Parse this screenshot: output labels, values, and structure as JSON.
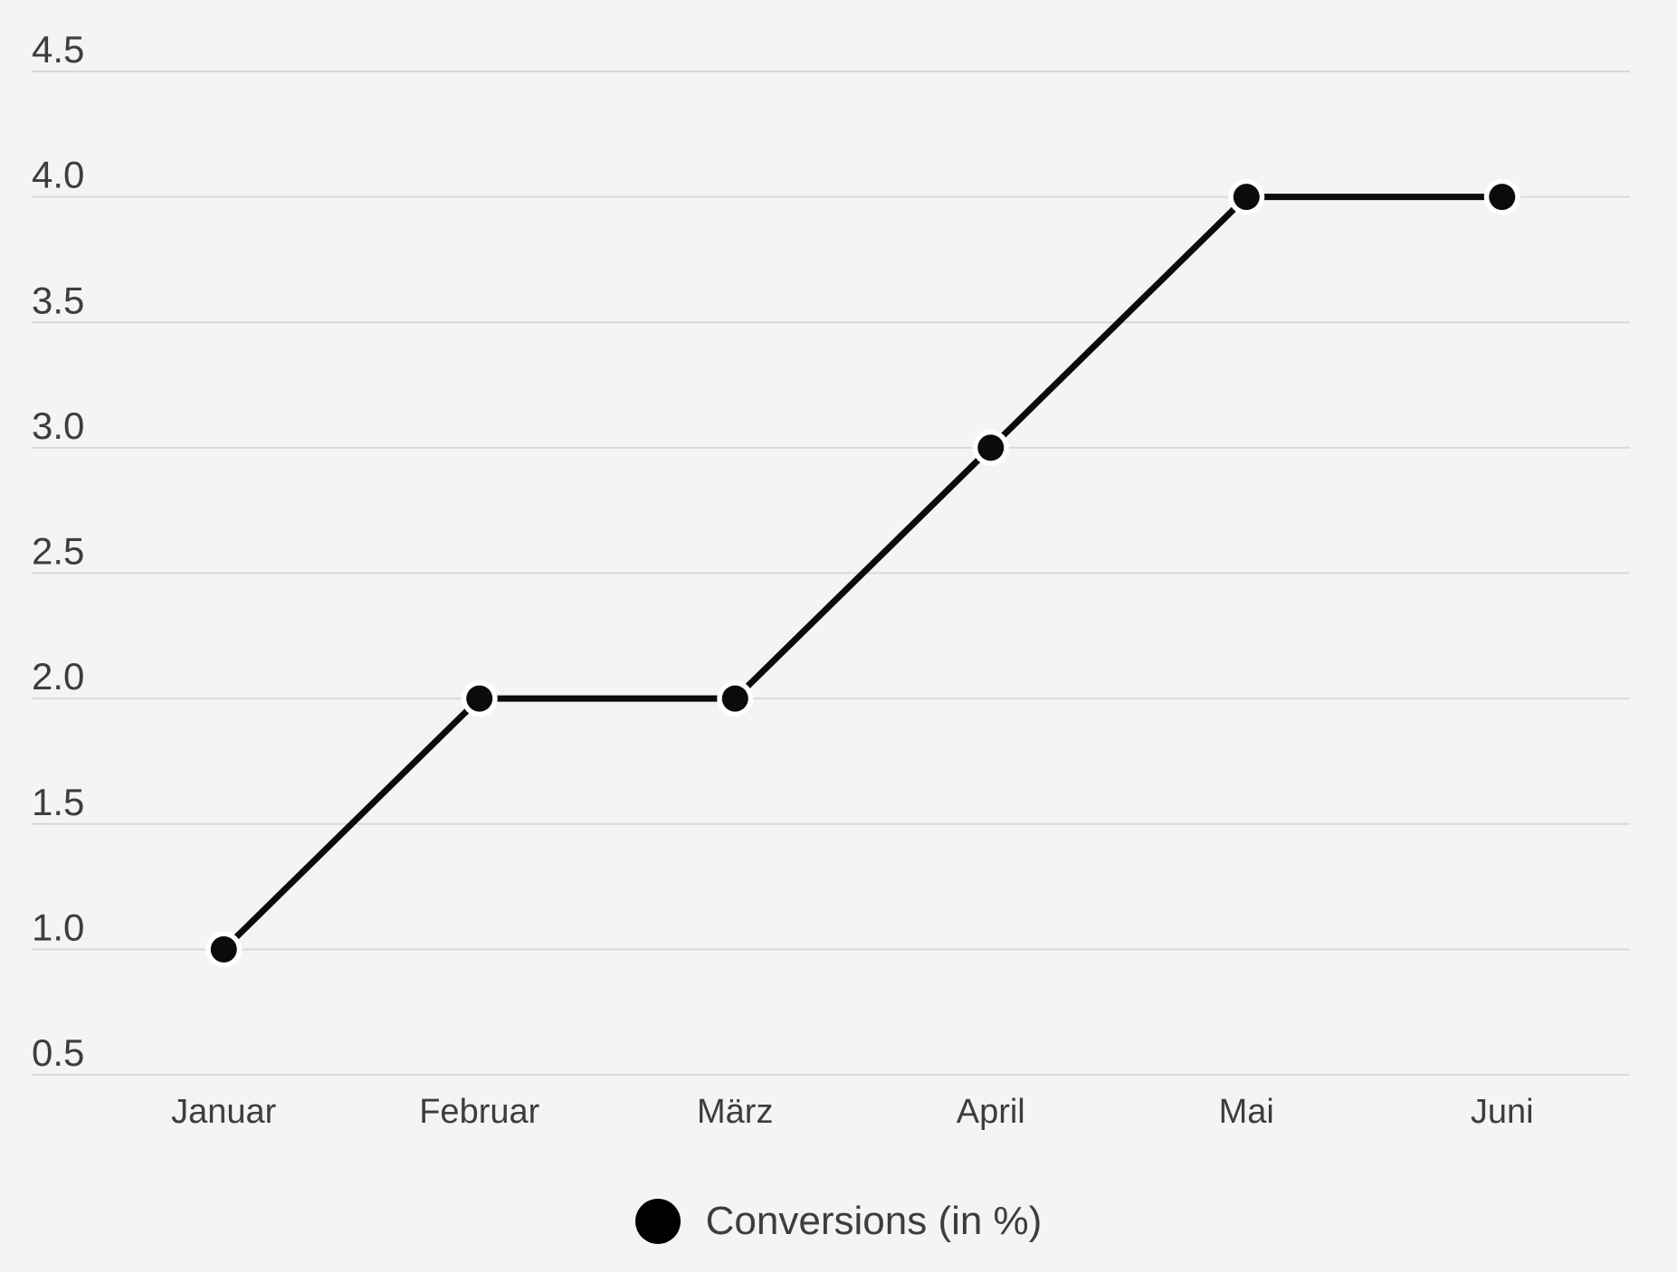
{
  "chart_data": {
    "type": "line",
    "categories": [
      "Januar",
      "Februar",
      "März",
      "April",
      "Mai",
      "Juni"
    ],
    "series": [
      {
        "name": "Conversions (in %)",
        "values": [
          1.0,
          2.0,
          2.0,
          3.0,
          4.0,
          4.0
        ],
        "color": "#0b0b0b"
      }
    ],
    "title": "",
    "xlabel": "",
    "ylabel": "",
    "ylim": [
      0.5,
      4.5
    ],
    "yticks": [
      0.5,
      1.0,
      1.5,
      2.0,
      2.5,
      3.0,
      3.5,
      4.0,
      4.5
    ],
    "ytick_decimals": 1,
    "grid": true,
    "legend_position": "bottom",
    "marker_style": "filled-circle-white-ring"
  },
  "legend": {
    "items": [
      {
        "label": "Conversions (in %)",
        "marker": "circle",
        "marker_color": "#000000"
      }
    ]
  },
  "colors": {
    "background": "#f4f4f4",
    "gridline": "#d9d9d9",
    "axis_text": "#3d3d3d",
    "legend_text": "#3d3d3d",
    "line": "#0b0b0b",
    "point_fill": "#0b0b0b",
    "point_ring": "#ffffff"
  }
}
